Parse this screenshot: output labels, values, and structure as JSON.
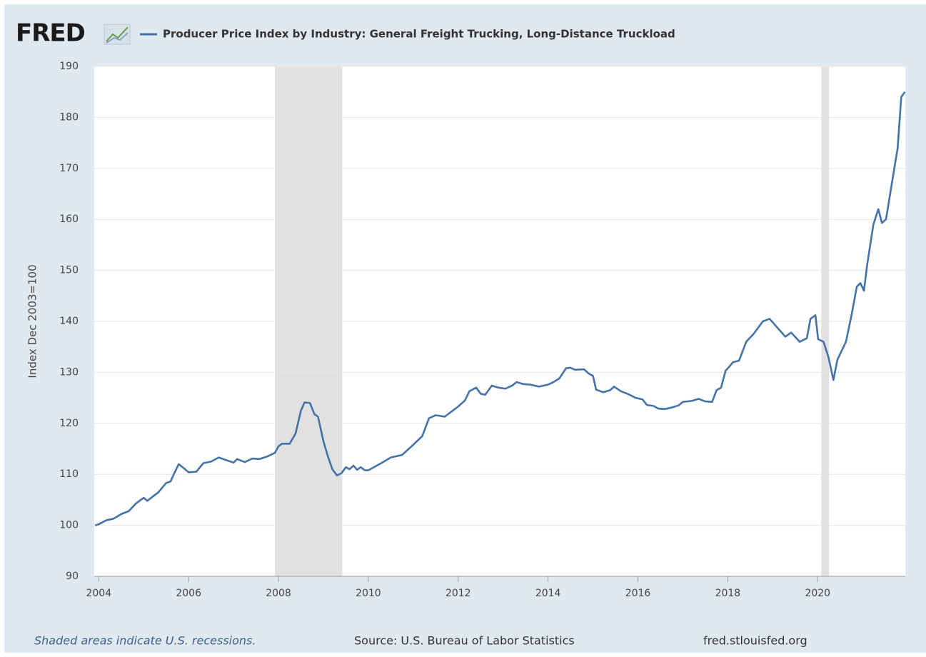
{
  "logo": "FRED",
  "chart_data": {
    "type": "line",
    "y_label": "Index Dec 2003=100",
    "footer_note": "Shaded areas indicate U.S. recessions.",
    "source": "Source: U.S. Bureau of Labor Statistics",
    "site": "fred.stlouisfed.org",
    "recessions": [
      [
        2007.92,
        2009.42
      ],
      [
        2020.08,
        2020.25
      ]
    ],
    "recession_color": "#e1e1e1",
    "x": [
      2003.92,
      2004.0,
      2004.17,
      2004.33,
      2004.5,
      2004.67,
      2004.83,
      2005.0,
      2005.08,
      2005.33,
      2005.5,
      2005.6,
      2005.67,
      2005.78,
      2005.92,
      2006.0,
      2006.17,
      2006.33,
      2006.5,
      2006.67,
      2006.83,
      2007.0,
      2007.08,
      2007.25,
      2007.42,
      2007.58,
      2007.75,
      2007.92,
      2008.0,
      2008.08,
      2008.25,
      2008.38,
      2008.5,
      2008.58,
      2008.7,
      2008.8,
      2008.88,
      2009.0,
      2009.1,
      2009.2,
      2009.3,
      2009.4,
      2009.5,
      2009.58,
      2009.67,
      2009.75,
      2009.83,
      2009.92,
      2010.0,
      2010.25,
      2010.5,
      2010.75,
      2011.0,
      2011.2,
      2011.35,
      2011.5,
      2011.7,
      2011.85,
      2012.0,
      2012.15,
      2012.25,
      2012.4,
      2012.5,
      2012.6,
      2012.75,
      2012.9,
      2013.05,
      2013.2,
      2013.3,
      2013.45,
      2013.6,
      2013.8,
      2014.0,
      2014.1,
      2014.25,
      2014.4,
      2014.5,
      2014.6,
      2014.8,
      2014.9,
      2015.0,
      2015.07,
      2015.23,
      2015.38,
      2015.47,
      2015.62,
      2015.79,
      2015.95,
      2016.1,
      2016.2,
      2016.35,
      2016.45,
      2016.6,
      2016.75,
      2016.9,
      2017.0,
      2017.2,
      2017.35,
      2017.5,
      2017.65,
      2017.75,
      2017.85,
      2017.95,
      2018.12,
      2018.25,
      2018.41,
      2018.57,
      2018.78,
      2018.93,
      2019.13,
      2019.28,
      2019.41,
      2019.6,
      2019.76,
      2019.84,
      2019.95,
      2020.01,
      2020.13,
      2020.24,
      2020.35,
      2020.44,
      2020.63,
      2020.76,
      2020.87,
      2020.95,
      2021.03,
      2021.1,
      2021.24,
      2021.35,
      2021.43,
      2021.52,
      2021.78,
      2021.86,
      2021.94
    ],
    "series": [
      {
        "name": "Producer Price Index by Industry: General Freight Trucking, Long-Distance Truckload",
        "color": "#4572a7",
        "values": [
          100,
          100.2,
          101,
          101.3,
          102.2,
          102.8,
          104.3,
          105.4,
          104.8,
          106.5,
          108.3,
          108.6,
          110,
          112,
          111,
          110.4,
          110.5,
          112.2,
          112.5,
          113.3,
          112.8,
          112.3,
          113,
          112.4,
          113.1,
          113,
          113.5,
          114.2,
          115.5,
          116,
          116,
          118,
          122.5,
          124.1,
          124,
          121.8,
          121.3,
          116.5,
          113.5,
          111,
          109.8,
          110.2,
          111.4,
          111,
          111.7,
          110.9,
          111.4,
          110.8,
          110.8,
          112,
          113.3,
          113.8,
          115.8,
          117.5,
          121,
          121.6,
          121.3,
          122.3,
          123.3,
          124.5,
          126.3,
          127,
          125.8,
          125.6,
          127.4,
          127,
          126.8,
          127.4,
          128.1,
          127.7,
          127.6,
          127.2,
          127.6,
          128,
          128.8,
          130.8,
          130.9,
          130.5,
          130.6,
          129.8,
          129.3,
          126.6,
          126.1,
          126.5,
          127.2,
          126.3,
          125.7,
          125,
          124.7,
          123.6,
          123.4,
          122.9,
          122.8,
          123.1,
          123.5,
          124.2,
          124.4,
          124.8,
          124.3,
          124.2,
          126.5,
          127,
          130.3,
          132,
          132.3,
          136,
          137.5,
          140,
          140.5,
          138.5,
          137,
          137.8,
          136,
          136.7,
          140.5,
          141.2,
          136.5,
          136,
          133,
          128.5,
          132.5,
          136,
          141.5,
          146.8,
          147.5,
          146,
          151,
          159,
          162,
          159.3,
          160,
          174,
          184,
          185
        ]
      }
    ],
    "xlim": [
      2003.9,
      2021.95
    ],
    "xticks": [
      2004,
      2006,
      2008,
      2010,
      2012,
      2014,
      2016,
      2018,
      2020
    ],
    "ylim": [
      90,
      190
    ],
    "yticks": [
      90,
      100,
      110,
      120,
      130,
      140,
      150,
      160,
      170,
      180,
      190
    ],
    "grid": true
  }
}
